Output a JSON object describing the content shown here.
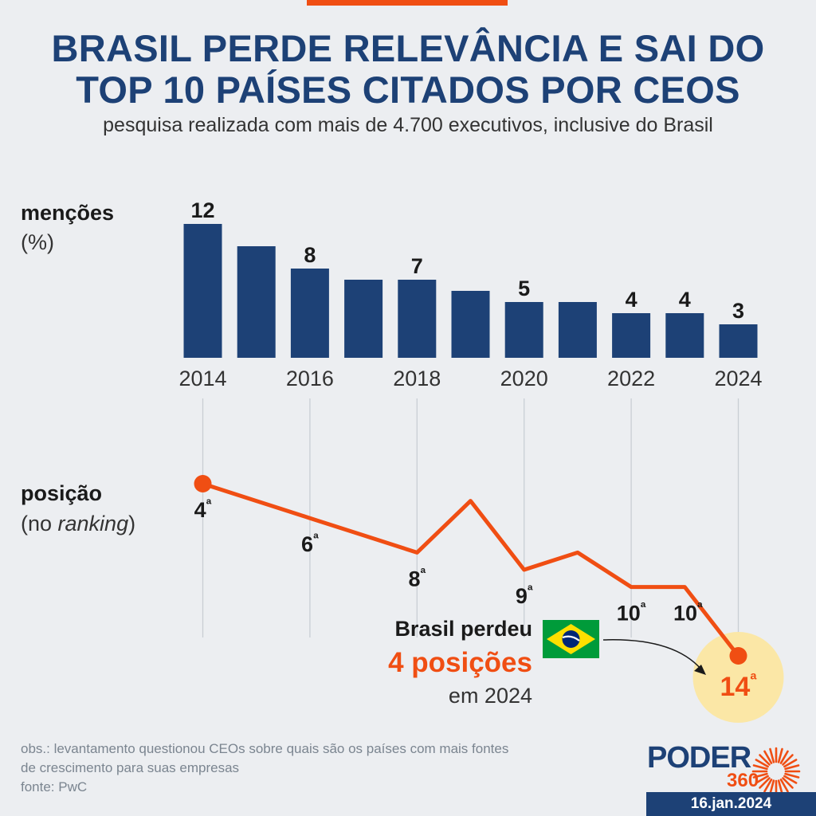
{
  "header": {
    "title_line1": "BRASIL PERDE RELEVÂNCIA E SAI DO",
    "title_line2": "TOP 10 PAÍSES CITADOS POR CEOS",
    "subtitle": "pesquisa realizada com mais de 4.700 executivos, inclusive do Brasil"
  },
  "bar_section": {
    "label": "menções",
    "unit": "(%)"
  },
  "line_section": {
    "label": "posição",
    "sub_open": "(no ",
    "sub_italic": "ranking",
    "sub_close": ")"
  },
  "callout": {
    "line1": "Brasil perdeu",
    "line2": "4 posições",
    "line3": "em 2024"
  },
  "footer": {
    "obs_line1": "obs.: levantamento questionou CEOs sobre quais são os países com mais fontes",
    "obs_line2": "de crescimento para suas empresas",
    "source": "fonte: PwC",
    "date": "16.jan.2024",
    "logo_word": "PODER",
    "logo_number": "360"
  },
  "colors": {
    "navy": "#1d4176",
    "orange": "#f04e13",
    "highlight": "#fbe7a6",
    "flag_green": "#009b3a",
    "flag_yellow": "#fedf00",
    "flag_blue": "#002776"
  },
  "chart_data": [
    {
      "type": "bar",
      "title": "menções",
      "ylabel": "(%)",
      "categories": [
        "2014",
        "2015",
        "2016",
        "2017",
        "2018",
        "2019",
        "2020",
        "2021",
        "2022",
        "2023",
        "2024"
      ],
      "x_tick_labels": [
        "2014",
        "2016",
        "2018",
        "2020",
        "2022",
        "2024"
      ],
      "values": [
        12,
        10,
        8,
        7,
        7,
        6,
        5,
        5,
        4,
        4,
        3
      ],
      "data_labels": [
        "12",
        "",
        "8",
        "",
        "7",
        "",
        "5",
        "",
        "4",
        "4",
        "3"
      ],
      "ylim": [
        0,
        12
      ]
    },
    {
      "type": "line",
      "title": "posição",
      "ylabel": "(no ranking)",
      "x": [
        "2014",
        "2015",
        "2016",
        "2017",
        "2018",
        "2019",
        "2020",
        "2021",
        "2022",
        "2023",
        "2024"
      ],
      "values": [
        4,
        5,
        6,
        7,
        8,
        5,
        9,
        8,
        10,
        10,
        14
      ],
      "data_labels": [
        "4ª",
        "",
        "6ª",
        "",
        "8ª",
        "",
        "9ª",
        "",
        "10ª",
        "10ª",
        "14ª"
      ],
      "ylim": [
        4,
        14
      ],
      "y_inverted": true
    }
  ]
}
